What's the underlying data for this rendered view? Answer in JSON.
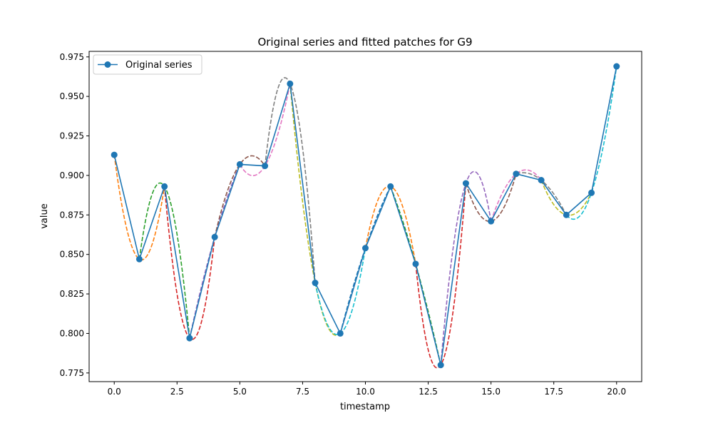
{
  "chart_data": {
    "type": "line",
    "title": "Original series and fitted patches for G9",
    "xlabel": "timestamp",
    "ylabel": "value",
    "xlim": [
      -1.0,
      21.0
    ],
    "ylim": [
      0.7695,
      0.9785
    ],
    "xticks": [
      0.0,
      2.5,
      5.0,
      7.5,
      10.0,
      12.5,
      15.0,
      17.5,
      20.0
    ],
    "xtick_labels": [
      "0.0",
      "2.5",
      "5.0",
      "7.5",
      "10.0",
      "12.5",
      "15.0",
      "17.5",
      "20.0"
    ],
    "yticks": [
      0.775,
      0.8,
      0.825,
      0.85,
      0.875,
      0.9,
      0.925,
      0.95,
      0.975
    ],
    "ytick_labels": [
      "0.775",
      "0.800",
      "0.825",
      "0.850",
      "0.875",
      "0.900",
      "0.925",
      "0.950",
      "0.975"
    ],
    "grid": false,
    "legend": {
      "position": "upper-left",
      "entries": [
        "Original series"
      ]
    },
    "series": [
      {
        "name": "Original series",
        "color": "#1f77b4",
        "marker": "circle",
        "x": [
          0,
          1,
          2,
          3,
          4,
          5,
          6,
          7,
          8,
          9,
          10,
          11,
          12,
          13,
          14,
          15,
          16,
          17,
          18,
          19,
          20
        ],
        "y": [
          0.913,
          0.847,
          0.893,
          0.797,
          0.861,
          0.907,
          0.906,
          0.958,
          0.832,
          0.8,
          0.854,
          0.893,
          0.844,
          0.78,
          0.895,
          0.871,
          0.901,
          0.897,
          0.875,
          0.889,
          0.969
        ]
      }
    ],
    "fitted_patches": [
      {
        "color": "#ff7f0e",
        "points": [
          [
            0,
            0.913
          ],
          [
            1,
            0.847
          ],
          [
            2,
            0.893
          ]
        ]
      },
      {
        "color": "#2ca02c",
        "points": [
          [
            1,
            0.847
          ],
          [
            2,
            0.893
          ],
          [
            3,
            0.797
          ]
        ]
      },
      {
        "color": "#d62728",
        "points": [
          [
            2,
            0.893
          ],
          [
            3,
            0.797
          ],
          [
            4,
            0.861
          ]
        ]
      },
      {
        "color": "#9467bd",
        "points": [
          [
            3,
            0.797
          ],
          [
            4,
            0.861
          ],
          [
            5,
            0.907
          ]
        ]
      },
      {
        "color": "#8c564b",
        "points": [
          [
            4,
            0.861
          ],
          [
            5,
            0.907
          ],
          [
            6,
            0.906
          ]
        ]
      },
      {
        "color": "#e377c2",
        "points": [
          [
            5,
            0.907
          ],
          [
            6,
            0.906
          ],
          [
            7,
            0.958
          ]
        ]
      },
      {
        "color": "#7f7f7f",
        "points": [
          [
            6,
            0.906
          ],
          [
            7,
            0.958
          ],
          [
            8,
            0.832
          ]
        ]
      },
      {
        "color": "#bcbd22",
        "points": [
          [
            7,
            0.958
          ],
          [
            8,
            0.832
          ],
          [
            9,
            0.8
          ]
        ]
      },
      {
        "color": "#17becf",
        "points": [
          [
            8,
            0.832
          ],
          [
            9,
            0.8
          ],
          [
            10,
            0.854
          ]
        ]
      },
      {
        "color": "#1f77b4",
        "points": [
          [
            9,
            0.8
          ],
          [
            10,
            0.854
          ],
          [
            11,
            0.893
          ]
        ]
      },
      {
        "color": "#ff7f0e",
        "points": [
          [
            10,
            0.854
          ],
          [
            11,
            0.893
          ],
          [
            12,
            0.844
          ]
        ]
      },
      {
        "color": "#2ca02c",
        "points": [
          [
            11,
            0.893
          ],
          [
            12,
            0.844
          ],
          [
            13,
            0.78
          ]
        ]
      },
      {
        "color": "#d62728",
        "points": [
          [
            12,
            0.844
          ],
          [
            13,
            0.78
          ],
          [
            14,
            0.895
          ]
        ]
      },
      {
        "color": "#9467bd",
        "points": [
          [
            13,
            0.78
          ],
          [
            14,
            0.895
          ],
          [
            15,
            0.871
          ]
        ]
      },
      {
        "color": "#8c564b",
        "points": [
          [
            14,
            0.895
          ],
          [
            15,
            0.871
          ],
          [
            16,
            0.901
          ]
        ]
      },
      {
        "color": "#e377c2",
        "points": [
          [
            15,
            0.871
          ],
          [
            16,
            0.901
          ],
          [
            17,
            0.897
          ]
        ]
      },
      {
        "color": "#7f7f7f",
        "points": [
          [
            16,
            0.901
          ],
          [
            17,
            0.897
          ],
          [
            18,
            0.875
          ]
        ]
      },
      {
        "color": "#bcbd22",
        "points": [
          [
            17,
            0.897
          ],
          [
            18,
            0.875
          ],
          [
            19,
            0.889
          ]
        ]
      },
      {
        "color": "#17becf",
        "points": [
          [
            18,
            0.875
          ],
          [
            19,
            0.889
          ],
          [
            20,
            0.969
          ]
        ]
      }
    ]
  }
}
